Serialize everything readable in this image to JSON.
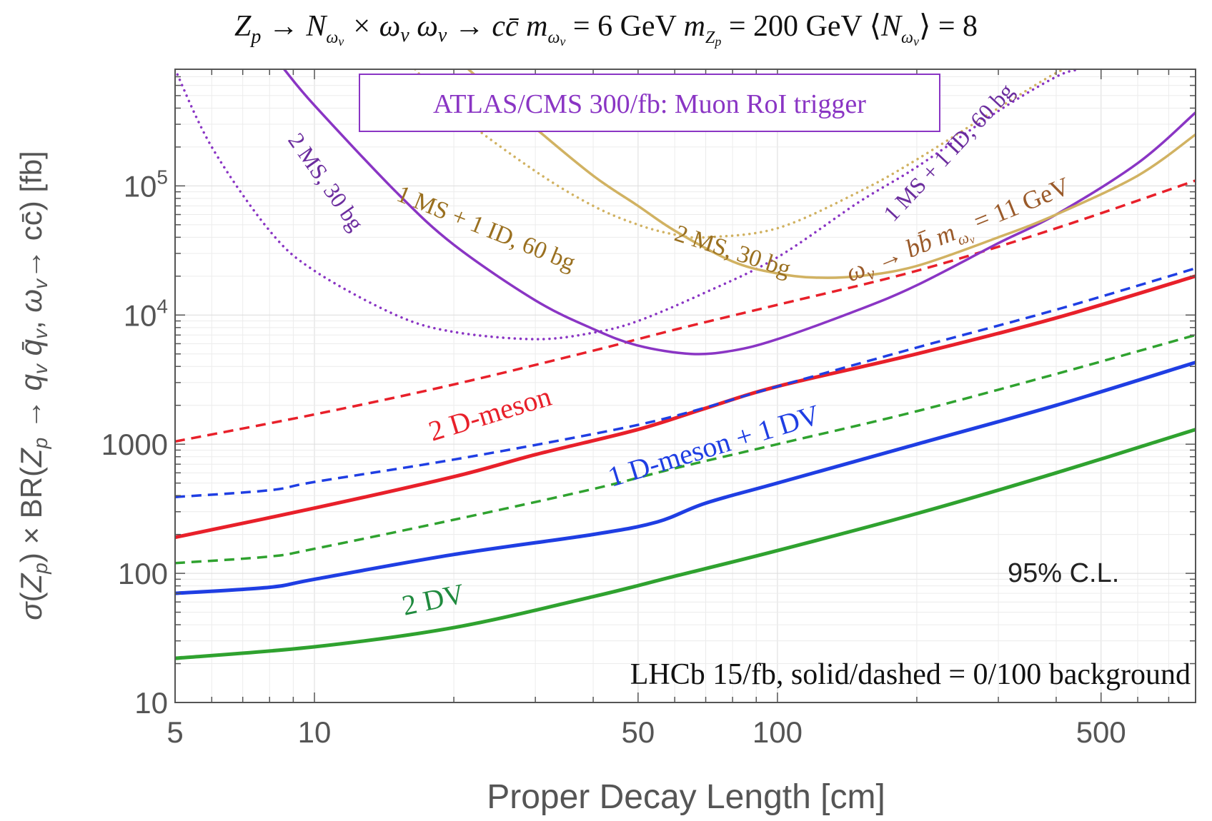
{
  "chart_data": {
    "type": "line",
    "title": "Z_p → N_ωv × ω_v   ω_v → cc̄   m_ωv = 6 GeV   m_Zp = 200 GeV   ⟨N_ωv⟩ = 8",
    "xlabel": "Proper Decay Length [cm]",
    "ylabel": "σ(Z_p) × BR(Z_p → q_v q̄_v, ω_v→ cc̄)  [fb]",
    "xscale": "log",
    "yscale": "log",
    "xlim": [
      5,
      800
    ],
    "ylim": [
      10,
      800000
    ],
    "x_ticks": [
      {
        "value": 5,
        "label": "5"
      },
      {
        "value": 10,
        "label": "10"
      },
      {
        "value": 50,
        "label": "50"
      },
      {
        "value": 100,
        "label": "100"
      },
      {
        "value": 500,
        "label": "500"
      }
    ],
    "y_ticks": [
      {
        "value": 10,
        "label": "10"
      },
      {
        "value": 100,
        "label": "100"
      },
      {
        "value": 1000,
        "label": "1000"
      },
      {
        "value": 10000,
        "label": "10",
        "exp": "4"
      },
      {
        "value": 100000,
        "label": "10",
        "exp": "5"
      }
    ],
    "grid": true,
    "series": [
      {
        "color": "#e8202a",
        "dash": "dashed",
        "width": 3.5,
        "x": [
          5,
          10,
          20,
          40,
          60,
          100,
          200,
          400,
          800
        ],
        "y": [
          1050,
          1700,
          2900,
          5300,
          7700,
          12000,
          22000,
          47000,
          110000
        ]
      },
      {
        "color": "#e8202a",
        "dash": "solid",
        "width": 5,
        "x": [
          5,
          10,
          20,
          30,
          50,
          70,
          100,
          200,
          400,
          800
        ],
        "y": [
          190,
          320,
          560,
          830,
          1300,
          1900,
          2800,
          5000,
          9500,
          20000
        ]
      },
      {
        "color": "#1f3ee3",
        "dash": "dashed",
        "width": 3.5,
        "x": [
          5,
          8,
          10,
          20,
          40,
          60,
          100,
          200,
          400,
          800
        ],
        "y": [
          390,
          440,
          510,
          760,
          1200,
          1650,
          2800,
          5600,
          11000,
          23000
        ]
      },
      {
        "color": "#1f3ee3",
        "dash": "solid",
        "width": 5,
        "x": [
          5,
          8,
          10,
          20,
          40,
          55,
          70,
          100,
          200,
          400,
          800
        ],
        "y": [
          70,
          78,
          90,
          140,
          200,
          250,
          350,
          500,
          1000,
          2000,
          4300
        ]
      },
      {
        "color": "#2fa22f",
        "dash": "dashed",
        "width": 3.5,
        "x": [
          5,
          8,
          10,
          20,
          40,
          60,
          100,
          200,
          400,
          800
        ],
        "y": [
          120,
          135,
          155,
          260,
          450,
          650,
          1000,
          1800,
          3500,
          7000
        ]
      },
      {
        "color": "#2fa22f",
        "dash": "solid",
        "width": 5,
        "x": [
          5,
          10,
          20,
          40,
          60,
          100,
          200,
          400,
          800
        ],
        "y": [
          22,
          27,
          38,
          66,
          95,
          150,
          290,
          600,
          1300
        ]
      },
      {
        "color": "#8a35c4",
        "dash": "solid",
        "width": 3.5,
        "x": [
          8.6,
          10,
          15,
          20,
          30,
          40,
          50,
          65,
          80,
          100,
          150,
          200,
          300,
          400,
          600,
          800
        ],
        "y": [
          800000,
          420000,
          90000,
          35000,
          13000,
          7800,
          5800,
          5000,
          5300,
          6500,
          11000,
          17000,
          36000,
          60000,
          150000,
          370000
        ]
      },
      {
        "color": "#8a35c4",
        "dash": "dotted",
        "width": 3.5,
        "x": [
          5,
          6,
          8,
          10,
          15,
          20,
          30,
          40,
          50,
          70,
          100,
          150,
          200,
          300,
          400,
          450
        ],
        "y": [
          800000,
          200000,
          45000,
          22000,
          10000,
          7400,
          6500,
          7300,
          9000,
          15000,
          28000,
          75000,
          140000,
          380000,
          700000,
          800000
        ]
      },
      {
        "color": "#d1b262",
        "dash": "dotted",
        "width": 3.5,
        "x": [
          16.5,
          20,
          30,
          40,
          50,
          60,
          70,
          100,
          150,
          200,
          300,
          400,
          430
        ],
        "y": [
          800000,
          380000,
          130000,
          70000,
          50000,
          42000,
          40000,
          47000,
          90000,
          160000,
          400000,
          750000,
          800000
        ]
      },
      {
        "color": "#d1b262",
        "dash": "solid",
        "width": 3.5,
        "x": [
          21.5,
          30,
          40,
          50,
          60,
          80,
          100,
          120,
          150,
          200,
          300,
          400,
          600,
          800
        ],
        "y": [
          800000,
          280000,
          120000,
          70000,
          45000,
          26000,
          21000,
          19500,
          20000,
          24000,
          40000,
          60000,
          120000,
          250000
        ]
      }
    ],
    "annotations": [
      {
        "text": "2 D-meson",
        "color": "#e8202a"
      },
      {
        "text": "1 D-meson + 1 DV",
        "color": "#1f3ee3"
      },
      {
        "text": "2 DV",
        "color": "#1f8a3e"
      },
      {
        "text": "2 MS, 30 bg",
        "color": "#6b2c9e"
      },
      {
        "text": "1 MS + 1 ID, 60 bg",
        "color": "#6b2c9e"
      },
      {
        "text": "1 MS + 1 ID, 60 bg",
        "color": "#9a7020"
      },
      {
        "text": "2 MS, 30 bg",
        "color": "#9a7020"
      },
      {
        "text": "ω_v → bb̄   m_ωv = 11 GeV",
        "color": "#9a5a2a"
      },
      {
        "text": "95% C.L.",
        "color": "#222222"
      },
      {
        "text": "LHCb 15/fb,  solid/dashed = 0/100  background",
        "color": "#111111"
      }
    ],
    "legend_box": {
      "text": "ATLAS/CMS  300/fb: Muon RoI trigger",
      "color": "#8a35c4"
    }
  }
}
